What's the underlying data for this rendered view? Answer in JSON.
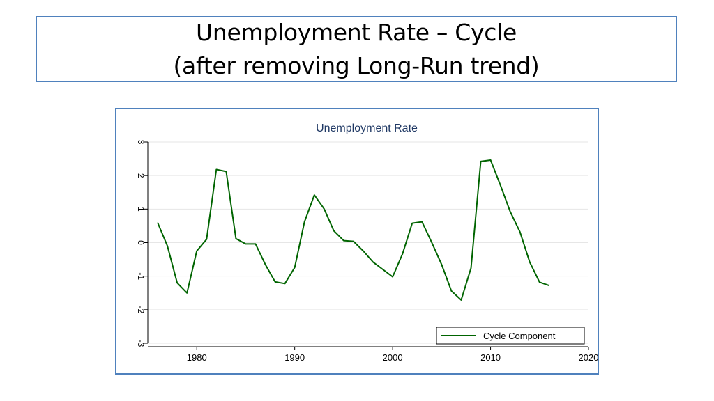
{
  "slide": {
    "title_line1": "Unemployment Rate – Cycle",
    "title_line2": "(after removing Long-Run trend)"
  },
  "colors": {
    "frame": "#4f81bd",
    "chart_title": "#1f3864",
    "series": "#006400",
    "grid": "#e6e6e6"
  },
  "chart_data": {
    "type": "line",
    "title": "Unemployment Rate",
    "xlabel": "",
    "ylabel": "",
    "xlim": [
      1975,
      2020
    ],
    "ylim": [
      -3,
      3
    ],
    "xticks": [
      1980,
      1990,
      2000,
      2010,
      2020
    ],
    "yticks": [
      -3,
      -2,
      -1,
      0,
      1,
      2,
      3
    ],
    "grid": true,
    "legend_position": "bottom-right",
    "series": [
      {
        "name": "Cycle Component",
        "x": [
          1976,
          1977,
          1978,
          1979,
          1980,
          1981,
          1982,
          1983,
          1984,
          1985,
          1986,
          1987,
          1988,
          1989,
          1990,
          1991,
          1992,
          1993,
          1994,
          1995,
          1996,
          1997,
          1998,
          1999,
          2000,
          2001,
          2002,
          2003,
          2004,
          2005,
          2006,
          2007,
          2008,
          2009,
          2010,
          2011,
          2012,
          2013,
          2014,
          2015,
          2016
        ],
        "y": [
          0.6,
          -0.1,
          -1.2,
          -1.5,
          -0.25,
          0.1,
          2.18,
          2.12,
          0.12,
          -0.04,
          -0.04,
          -0.65,
          -1.17,
          -1.22,
          -0.74,
          0.62,
          1.42,
          1.01,
          0.35,
          0.06,
          0.04,
          -0.25,
          -0.58,
          -0.8,
          -1.02,
          -0.34,
          0.58,
          0.62,
          0.0,
          -0.65,
          -1.44,
          -1.71,
          -0.76,
          2.42,
          2.46,
          1.72,
          0.93,
          0.32,
          -0.58,
          -1.18,
          -1.28
        ]
      }
    ]
  }
}
